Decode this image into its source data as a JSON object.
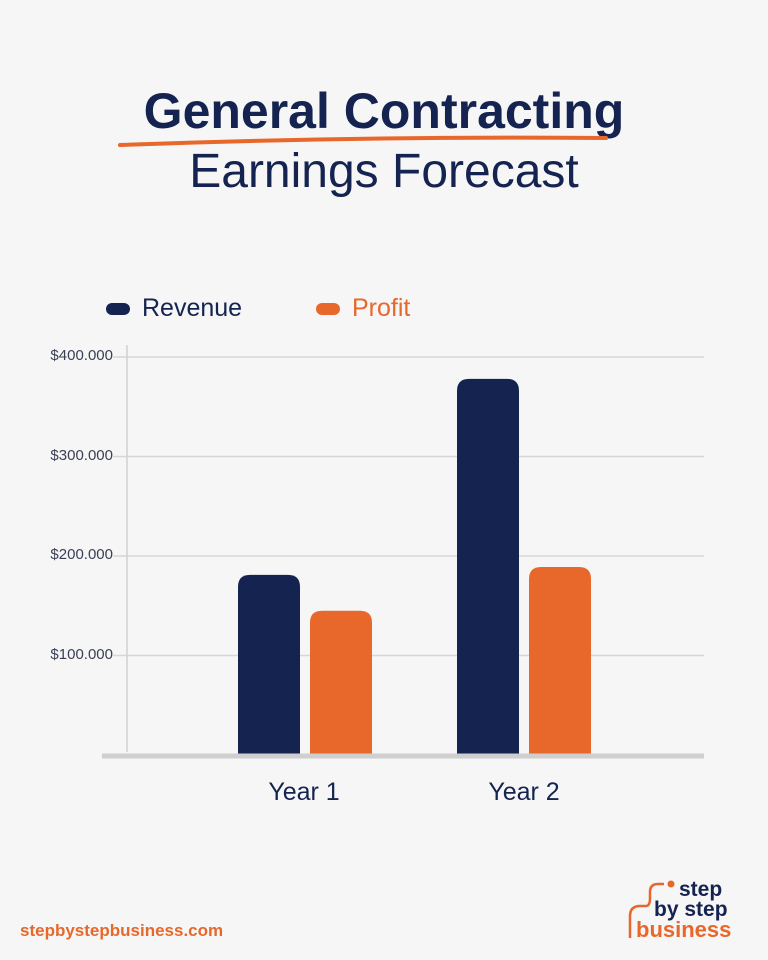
{
  "chart_data": {
    "type": "bar",
    "title": "General Contracting",
    "subtitle": "Earnings Forecast",
    "categories": [
      "Year 1",
      "Year 2"
    ],
    "series": [
      {
        "name": "Revenue",
        "color": "#14234f",
        "values": [
          181000,
          378000
        ]
      },
      {
        "name": "Profit",
        "color": "#e8672a",
        "values": [
          145000,
          189000
        ]
      }
    ],
    "yticks": [
      {
        "value": 400000,
        "label": "$400.000"
      },
      {
        "value": 300000,
        "label": "$300.000"
      },
      {
        "value": 200000,
        "label": "$200.000"
      },
      {
        "value": 100000,
        "label": "$100.000"
      }
    ],
    "ylim": [
      0,
      400000
    ],
    "grid": true,
    "legend": "top-left"
  },
  "footer": {
    "website": "stepbystepbusiness.com",
    "logo_text": "step by step business"
  },
  "colors": {
    "navy": "#14234f",
    "orange": "#e8672a",
    "background": "#f6f6f6"
  }
}
